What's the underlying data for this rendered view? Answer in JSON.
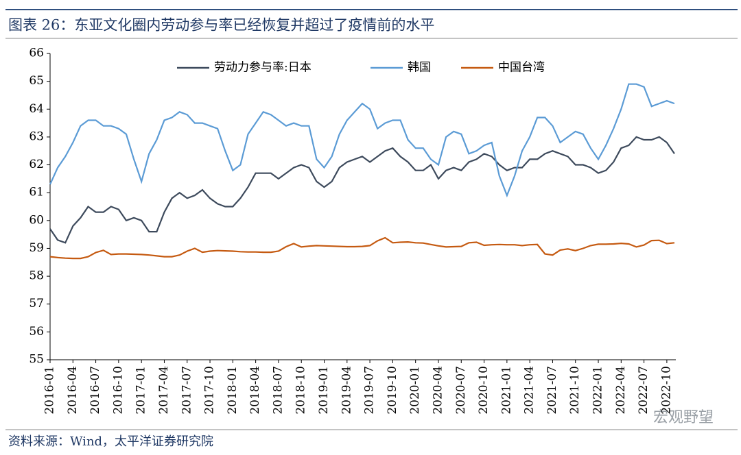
{
  "chart_data": {
    "type": "line",
    "title": "图表 26：东亚文化圈内劳动参与率已经恢复并超过了疫情前的水平",
    "source": "资料来源：Wind，太平洋证券研究院",
    "categories": [
      "2016-01",
      null,
      null,
      "2016-04",
      null,
      null,
      "2016-07",
      null,
      null,
      "2016-10",
      null,
      null,
      "2017-01",
      null,
      null,
      "2017-04",
      null,
      null,
      "2017-07",
      null,
      null,
      "2017-10",
      null,
      null,
      "2018-01",
      null,
      null,
      "2018-04",
      null,
      null,
      "2018-07",
      null,
      null,
      "2018-10",
      null,
      null,
      "2019-01",
      null,
      null,
      "2019-04",
      null,
      null,
      "2019-07",
      null,
      null,
      "2019-10",
      null,
      null,
      "2020-01",
      null,
      null,
      "2020-04",
      null,
      null,
      "2020-07",
      null,
      null,
      "2020-10",
      null,
      null,
      "2021-01",
      null,
      null,
      "2021-04",
      null,
      null,
      "2021-07",
      null,
      null,
      "2021-10",
      null,
      null,
      "2022-01",
      null,
      null,
      "2022-04",
      null,
      null,
      "2022-07",
      null,
      null,
      "2022-10",
      null
    ],
    "series": [
      {
        "name": "劳动力参与率:日本",
        "color": "#3d4a5c",
        "values": [
          59.7,
          59.3,
          59.2,
          59.8,
          60.1,
          60.5,
          60.3,
          60.3,
          60.5,
          60.4,
          60.0,
          60.1,
          60.0,
          59.6,
          59.6,
          60.3,
          60.8,
          61.0,
          60.8,
          60.9,
          61.1,
          60.8,
          60.6,
          60.5,
          60.5,
          60.8,
          61.2,
          61.7,
          61.7,
          61.7,
          61.5,
          61.7,
          61.9,
          62.0,
          61.9,
          61.4,
          61.2,
          61.4,
          61.9,
          62.1,
          62.2,
          62.3,
          62.1,
          62.3,
          62.5,
          62.6,
          62.3,
          62.1,
          61.8,
          61.8,
          62.0,
          61.5,
          61.8,
          61.9,
          61.8,
          62.1,
          62.2,
          62.4,
          62.3,
          62.0,
          61.8,
          61.9,
          61.9,
          62.2,
          62.2,
          62.4,
          62.5,
          62.4,
          62.3,
          62.0,
          62.0,
          61.9,
          61.7,
          61.8,
          62.1,
          62.6,
          62.7,
          63.0,
          62.9,
          62.9,
          63.0,
          62.8,
          62.4
        ]
      },
      {
        "name": "韩国",
        "color": "#5b9bd5",
        "values": [
          61.3,
          61.9,
          62.3,
          62.8,
          63.4,
          63.6,
          63.6,
          63.4,
          63.4,
          63.3,
          63.1,
          62.2,
          61.4,
          62.4,
          62.9,
          63.6,
          63.7,
          63.9,
          63.8,
          63.5,
          63.5,
          63.4,
          63.3,
          62.5,
          61.8,
          62.0,
          63.1,
          63.5,
          63.9,
          63.8,
          63.6,
          63.4,
          63.5,
          63.4,
          63.4,
          62.2,
          61.9,
          62.3,
          63.1,
          63.6,
          63.9,
          64.2,
          64.0,
          63.3,
          63.5,
          63.6,
          63.6,
          62.9,
          62.6,
          62.6,
          62.2,
          62.0,
          63.0,
          63.2,
          63.1,
          62.4,
          62.5,
          62.7,
          62.8,
          61.6,
          60.9,
          61.6,
          62.5,
          63.0,
          63.7,
          63.7,
          63.4,
          62.8,
          63.0,
          63.2,
          63.1,
          62.6,
          62.2,
          62.7,
          63.3,
          64.0,
          64.9,
          64.9,
          64.8,
          64.1,
          64.2,
          64.3,
          64.2
        ]
      },
      {
        "name": "中国台湾",
        "color": "#c55a11",
        "values": [
          58.7,
          58.67,
          58.65,
          58.64,
          58.64,
          58.7,
          58.85,
          58.93,
          58.78,
          58.8,
          58.8,
          58.79,
          58.78,
          58.76,
          58.73,
          58.7,
          58.7,
          58.76,
          58.9,
          59.0,
          58.86,
          58.9,
          58.92,
          58.91,
          58.9,
          58.88,
          58.87,
          58.87,
          58.86,
          58.86,
          58.9,
          59.06,
          59.17,
          59.05,
          59.08,
          59.1,
          59.09,
          59.08,
          59.07,
          59.06,
          59.06,
          59.07,
          59.1,
          59.27,
          59.38,
          59.2,
          59.22,
          59.23,
          59.2,
          59.19,
          59.14,
          59.09,
          59.05,
          59.06,
          59.07,
          59.2,
          59.22,
          59.11,
          59.13,
          59.14,
          59.13,
          59.13,
          59.1,
          59.13,
          59.14,
          58.8,
          58.76,
          58.94,
          58.98,
          58.92,
          59.0,
          59.1,
          59.15,
          59.15,
          59.16,
          59.18,
          59.16,
          59.05,
          59.12,
          59.28,
          59.29,
          59.17,
          59.2
        ]
      }
    ],
    "ylim": [
      55,
      66
    ],
    "yticks": [
      55,
      56,
      57,
      58,
      59,
      60,
      61,
      62,
      63,
      64,
      65,
      66
    ],
    "grid": false,
    "legend": "top-center"
  },
  "watermark": "宏观野望"
}
